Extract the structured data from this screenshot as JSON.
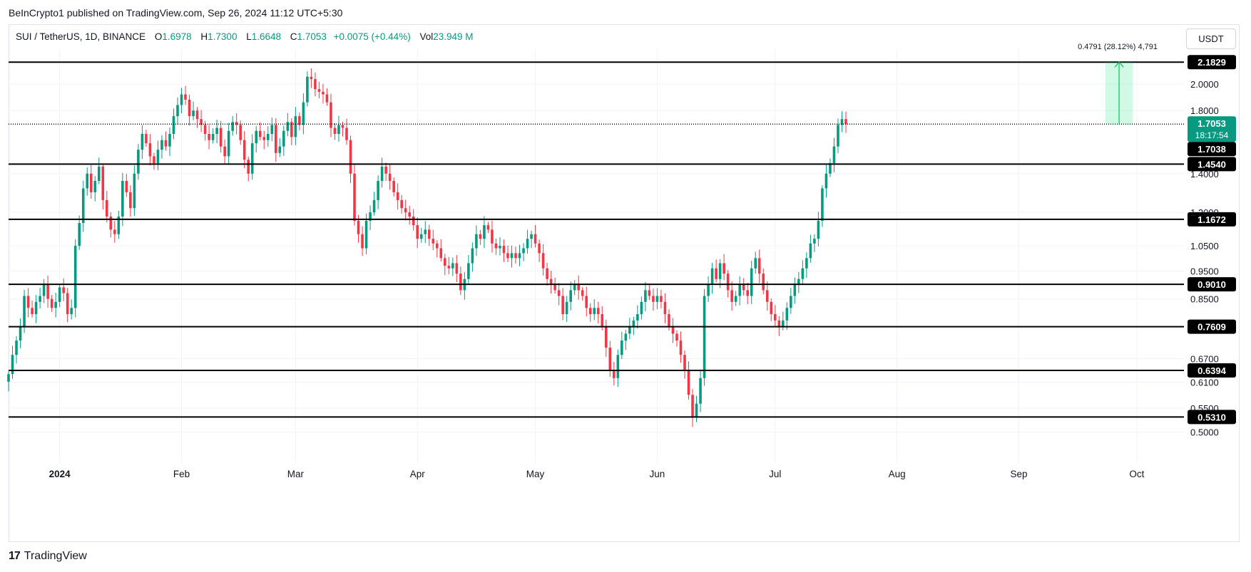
{
  "header": {
    "published_by": "BeInCrypto1 published on TradingView.com, Sep 26, 2024 11:12 UTC+5:30"
  },
  "legend": {
    "symbol": "SUI / TetherUS, 1D, BINANCE",
    "open_label": "O",
    "open": "1.6978",
    "high_label": "H",
    "high": "1.7300",
    "low_label": "L",
    "low": "1.6648",
    "close_label": "C",
    "close": "1.7053",
    "change": "+0.0075 (+0.44%)",
    "vol_label": "Vol",
    "vol": "23.949 M"
  },
  "currency_button": "USDT",
  "measure": {
    "text": "0.4791 (28.12%) 4,791"
  },
  "footer": {
    "brand": "TradingView"
  },
  "colors": {
    "up": "#089981",
    "down": "#f23645",
    "measure": "#00c853",
    "level": "#000000",
    "label_bg": "#000000"
  },
  "chart_data": {
    "type": "candlestick",
    "symbol": "SUI / TetherUS",
    "interval": "1D",
    "exchange": "BINANCE",
    "y_scale": "log",
    "ylim": [
      0.46,
      2.26
    ],
    "ylabel": "USDT",
    "y_ticks": [
      "2.0000",
      "1.8000",
      "1.4000",
      "1.2000",
      "1.0500",
      "0.9500",
      "0.8500",
      "0.6700",
      "0.6100",
      "0.5500",
      "0.5000"
    ],
    "x_range": [
      "2023-12-19",
      "2024-10-13"
    ],
    "x_ticks": [
      {
        "date": "2024-01-01",
        "label": "2024"
      },
      {
        "date": "2024-02-01",
        "label": "Feb"
      },
      {
        "date": "2024-03-01",
        "label": "Mar"
      },
      {
        "date": "2024-04-01",
        "label": "Apr"
      },
      {
        "date": "2024-05-01",
        "label": "May"
      },
      {
        "date": "2024-06-01",
        "label": "Jun"
      },
      {
        "date": "2024-07-01",
        "label": "Jul"
      },
      {
        "date": "2024-08-01",
        "label": "Aug"
      },
      {
        "date": "2024-09-01",
        "label": "Sep"
      },
      {
        "date": "2024-10-01",
        "label": "Oct"
      }
    ],
    "horizontal_levels": [
      "2.1829",
      "1.4540",
      "1.1672",
      "0.9010",
      "0.7609",
      "0.6394",
      "0.5310"
    ],
    "last_price": {
      "value": "1.7053",
      "countdown": "18:17:54"
    },
    "dotted_line_value": 1.7053,
    "extra_label": "1.7038",
    "measure_range": {
      "from_date": "2024-09-23",
      "to_date": "2024-09-30",
      "from": 1.7038,
      "to": 2.1829
    },
    "closes": [
      0.63,
      0.68,
      0.72,
      0.76,
      0.86,
      0.82,
      0.8,
      0.84,
      0.86,
      0.9,
      0.85,
      0.82,
      0.84,
      0.89,
      0.87,
      0.8,
      0.82,
      1.05,
      1.15,
      1.32,
      1.4,
      1.3,
      1.36,
      1.44,
      1.26,
      1.18,
      1.12,
      1.1,
      1.18,
      1.36,
      1.3,
      1.22,
      1.4,
      1.54,
      1.64,
      1.58,
      1.5,
      1.46,
      1.54,
      1.6,
      1.56,
      1.64,
      1.76,
      1.84,
      1.92,
      1.88,
      1.76,
      1.8,
      1.74,
      1.7,
      1.64,
      1.6,
      1.64,
      1.68,
      1.56,
      1.5,
      1.66,
      1.72,
      1.7,
      1.6,
      1.48,
      1.4,
      1.58,
      1.66,
      1.62,
      1.6,
      1.64,
      1.7,
      1.52,
      1.56,
      1.66,
      1.72,
      1.62,
      1.76,
      1.7,
      1.86,
      2.06,
      2.04,
      1.96,
      1.94,
      1.92,
      1.86,
      1.68,
      1.64,
      1.7,
      1.68,
      1.6,
      1.4,
      1.16,
      1.1,
      1.04,
      1.16,
      1.2,
      1.26,
      1.36,
      1.44,
      1.4,
      1.36,
      1.3,
      1.26,
      1.22,
      1.2,
      1.18,
      1.14,
      1.08,
      1.1,
      1.12,
      1.08,
      1.06,
      1.04,
      1.0,
      0.97,
      0.96,
      0.98,
      0.94,
      0.88,
      0.92,
      0.98,
      1.04,
      1.1,
      1.08,
      1.14,
      1.12,
      1.06,
      1.04,
      1.05,
      1.02,
      1.0,
      1.02,
      1.0,
      1.02,
      1.04,
      1.08,
      1.1,
      1.06,
      1.02,
      0.96,
      0.92,
      0.9,
      0.88,
      0.86,
      0.8,
      0.84,
      0.88,
      0.9,
      0.88,
      0.86,
      0.82,
      0.8,
      0.82,
      0.8,
      0.76,
      0.7,
      0.64,
      0.62,
      0.68,
      0.72,
      0.74,
      0.76,
      0.78,
      0.8,
      0.84,
      0.88,
      0.86,
      0.84,
      0.86,
      0.84,
      0.8,
      0.76,
      0.74,
      0.72,
      0.68,
      0.64,
      0.58,
      0.53,
      0.56,
      0.62,
      0.86,
      0.9,
      0.96,
      0.92,
      0.98,
      0.94,
      0.88,
      0.84,
      0.86,
      0.9,
      0.88,
      0.86,
      0.96,
      1.0,
      0.94,
      0.88,
      0.84,
      0.8,
      0.78,
      0.76,
      0.78,
      0.82,
      0.86,
      0.9,
      0.92,
      0.96,
      1.0,
      1.06,
      1.08,
      1.16,
      1.32,
      1.4,
      1.46,
      1.56,
      1.7,
      1.74,
      1.7053
    ]
  }
}
